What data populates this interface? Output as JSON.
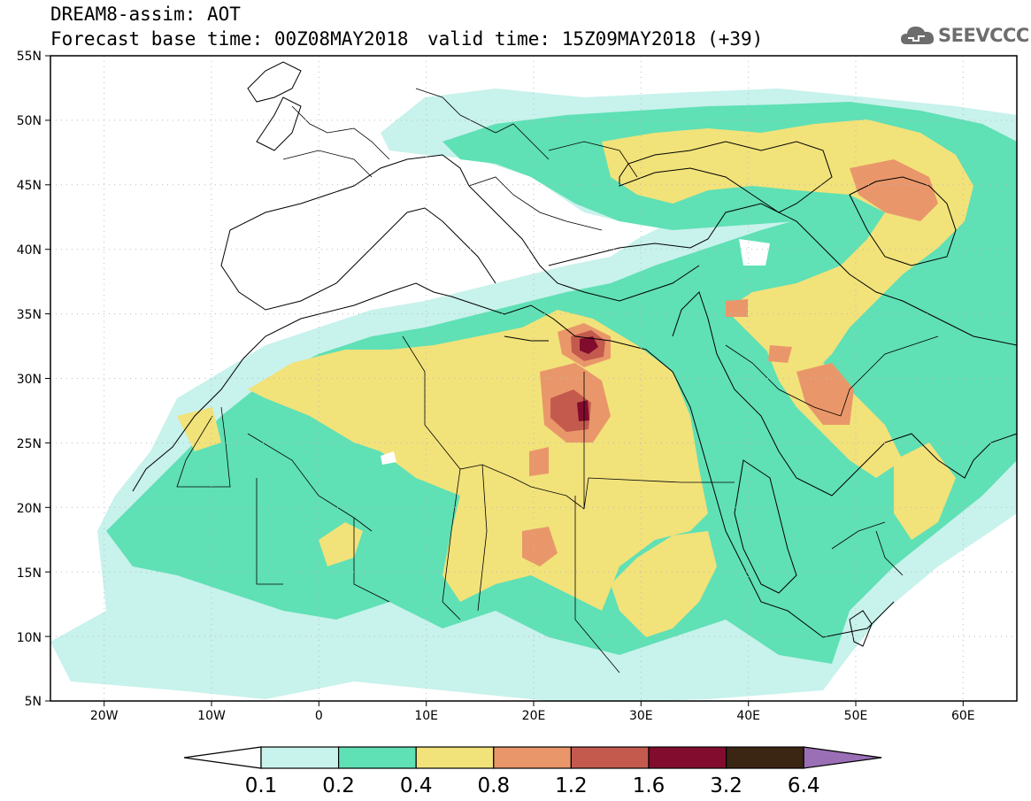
{
  "title": {
    "line1": "DREAM8-assim: AOT",
    "line2": "Forecast base time: 00Z08MAY2018",
    "valid": "valid time: 15Z09MAY2018 (+39)"
  },
  "logo": {
    "text": "SEEVCCC",
    "icon": "cloud-icon",
    "color": "#6d6d6d"
  },
  "map": {
    "lat_labels": [
      "55N",
      "50N",
      "45N",
      "40N",
      "35N",
      "30N",
      "25N",
      "20N",
      "15N",
      "10N",
      "5N"
    ],
    "lon_labels": [
      "20W",
      "10W",
      "0",
      "10E",
      "20E",
      "30E",
      "40E",
      "50E",
      "60E"
    ],
    "extent": {
      "lon": [
        -25,
        65
      ],
      "lat": [
        5,
        55
      ]
    }
  },
  "colorbar": {
    "labels": [
      "0.1",
      "0.2",
      "0.4",
      "0.8",
      "1.2",
      "1.6",
      "3.2",
      "6.4"
    ],
    "colors": [
      "#ffffff",
      "#c8f2ec",
      "#5fe0b5",
      "#f2e27a",
      "#e9976a",
      "#c45a4e",
      "#820c2e",
      "#3b2513",
      "#9a6fb5"
    ]
  }
}
